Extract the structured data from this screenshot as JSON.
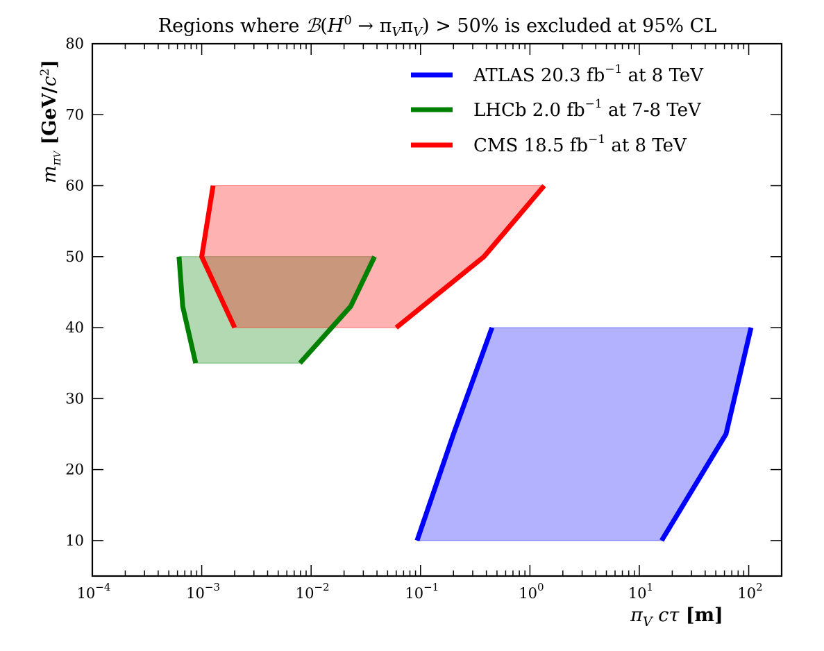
{
  "chart_data": {
    "type": "area",
    "title": "Regions where ℬ(H⁰ → π_Vπ_V) > 50% is excluded at 95% CL",
    "xlabel": "π_V cτ [m]",
    "ylabel": "m_{π_V} [GeV/c²]",
    "x_scale": "log",
    "xlim": [
      0.0001,
      200
    ],
    "ylim": [
      5,
      80
    ],
    "x_ticks": [
      {
        "value": 0.0001,
        "base": "10",
        "exp": "−4"
      },
      {
        "value": 0.001,
        "base": "10",
        "exp": "−3"
      },
      {
        "value": 0.01,
        "base": "10",
        "exp": "−2"
      },
      {
        "value": 0.1,
        "base": "10",
        "exp": "−1"
      },
      {
        "value": 1,
        "base": "10",
        "exp": "0"
      },
      {
        "value": 10,
        "base": "10",
        "exp": "1"
      },
      {
        "value": 100,
        "base": "10",
        "exp": "2"
      }
    ],
    "y_ticks": [
      10,
      20,
      30,
      40,
      50,
      60,
      70,
      80
    ],
    "grid": false,
    "legend_position": "top-right",
    "series": [
      {
        "name": "ATLAS 20.3 fb⁻¹ at 8 TeV",
        "label_main": "ATLAS 20.3 fb",
        "label_sup": "−1",
        "label_tail": " at 8 TeV",
        "color": "#0000ff",
        "fill_color": "#b2b2ff",
        "left_edge": [
          [
            0.093,
            10
          ],
          [
            0.2,
            25
          ],
          [
            0.45,
            40
          ]
        ],
        "right_edge": [
          [
            16,
            10
          ],
          [
            62,
            25
          ],
          [
            105,
            40
          ]
        ]
      },
      {
        "name": "LHCb 2.0 fb⁻¹ at 7-8 TeV",
        "label_main": "LHCb 2.0 fb",
        "label_sup": "−1",
        "label_tail": " at 7-8 TeV",
        "color": "#008000",
        "fill_color": "#b2d8b2",
        "left_edge": [
          [
            0.00088,
            35
          ],
          [
            0.00067,
            43
          ],
          [
            0.00062,
            50
          ]
        ],
        "right_edge": [
          [
            0.0079,
            35
          ],
          [
            0.023,
            43
          ],
          [
            0.038,
            50
          ]
        ]
      },
      {
        "name": "CMS 18.5 fb⁻¹ at 8 TeV",
        "label_main": "CMS 18.5 fb",
        "label_sup": "−1",
        "label_tail": " at 8 TeV",
        "color": "#ff0000",
        "fill_color": "#ffb2b2",
        "left_edge": [
          [
            0.002,
            40
          ],
          [
            0.001,
            50
          ],
          [
            0.00127,
            60
          ]
        ],
        "right_edge": [
          [
            0.06,
            40
          ],
          [
            0.38,
            50
          ],
          [
            1.35,
            60
          ]
        ]
      }
    ]
  }
}
